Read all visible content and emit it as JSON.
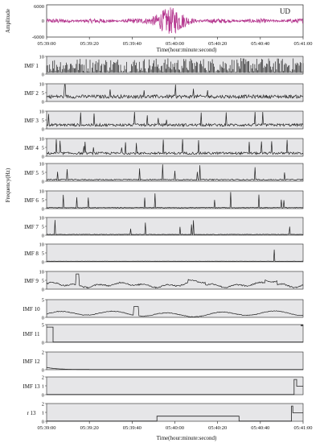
{
  "figure": {
    "top_panel": {
      "ylabel": "Amplitude",
      "badge": "UD",
      "yticks": [
        "6000",
        "0",
        "-6000"
      ]
    },
    "time_ticks": [
      "05:39:00",
      "05:39:20",
      "05:39:40",
      "05:40:00",
      "05:40:20",
      "05:40:40",
      "05:41:00"
    ],
    "xlabel": "Time(hour:minute:second)",
    "freq_label": "Frequency(Hz)"
  },
  "chart_data": {
    "type": "line",
    "title": "",
    "x": {
      "start": "05:39:00",
      "end": "05:41:00",
      "unit": "hour:minute:second"
    },
    "xlabel": "Time(hour:minute:second)",
    "colors": {
      "seismogram": "#b5378f",
      "panel_bg": "#e6e6e8",
      "trace": "#222222"
    },
    "waveform": {
      "label": "UD",
      "ylabel": "Amplitude",
      "ylim": [
        -6000,
        6000
      ],
      "yticks": [
        6000,
        0,
        -6000
      ],
      "note_strong_motion_window": [
        "05:39:48",
        "05:40:08"
      ]
    },
    "imfs": [
      {
        "name": "IMF 1",
        "ylim": [
          0,
          10
        ],
        "yticks": [
          "10",
          "0"
        ],
        "baseline": 4.0,
        "style": "dense"
      },
      {
        "name": "IMF 2",
        "ylim": [
          0,
          10
        ],
        "yticks": [
          "10",
          "5",
          "0"
        ],
        "baseline": 2.5
      },
      {
        "name": "IMF 3",
        "ylim": [
          0,
          10
        ],
        "yticks": [
          "10",
          "5",
          "0"
        ],
        "baseline": 2.0
      },
      {
        "name": "IMF 4",
        "ylim": [
          0,
          10
        ],
        "yticks": [
          "10",
          "5",
          "0"
        ],
        "baseline": 1.5
      },
      {
        "name": "IMF 5",
        "ylim": [
          0,
          10
        ],
        "yticks": [
          "10",
          "5",
          "0"
        ],
        "baseline": 0.8
      },
      {
        "name": "IMF 6",
        "ylim": [
          0,
          10
        ],
        "yticks": [
          "10",
          "5",
          "0"
        ],
        "baseline": 0.5
      },
      {
        "name": "IMF 7",
        "ylim": [
          0,
          10
        ],
        "yticks": [
          "10",
          "5",
          "0"
        ],
        "baseline": 0.4
      },
      {
        "name": "IMF 8",
        "ylim": [
          0,
          10
        ],
        "yticks": [
          "10",
          "5",
          "0"
        ],
        "baseline": 0.3
      },
      {
        "name": "IMF 9",
        "ylim": [
          0,
          10
        ],
        "yticks": [
          "10",
          "5",
          "0"
        ],
        "baseline": 2.5
      },
      {
        "name": "IMF 10",
        "ylim": [
          0,
          5
        ],
        "yticks": [
          "5",
          "0"
        ],
        "baseline": 1.0
      },
      {
        "name": "IMF 11",
        "ylim": [
          0,
          5
        ],
        "yticks": [
          "5",
          "0"
        ],
        "baseline": 0.0
      },
      {
        "name": "IMF 12",
        "ylim": [
          0,
          2
        ],
        "yticks": [
          "2",
          "0"
        ],
        "baseline": 0.0
      },
      {
        "name": "IMF 13",
        "ylim": [
          0,
          2
        ],
        "yticks": [
          "2",
          "1",
          "0"
        ],
        "baseline": 0.0
      },
      {
        "name": "r 13",
        "ylim": [
          0,
          2
        ],
        "yticks": [
          "2",
          "1",
          "0"
        ],
        "baseline": 0.0
      }
    ]
  }
}
